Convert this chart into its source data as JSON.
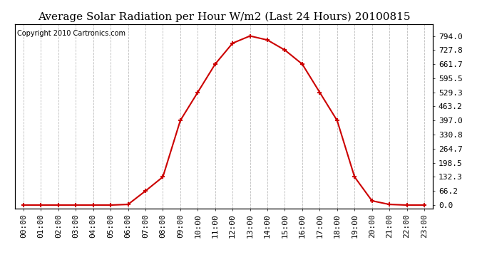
{
  "title": "Average Solar Radiation per Hour W/m2 (Last 24 Hours) 20100815",
  "copyright": "Copyright 2010 Cartronics.com",
  "hours": [
    "00:00",
    "01:00",
    "02:00",
    "03:00",
    "04:00",
    "05:00",
    "06:00",
    "07:00",
    "08:00",
    "09:00",
    "10:00",
    "11:00",
    "12:00",
    "13:00",
    "14:00",
    "15:00",
    "16:00",
    "17:00",
    "18:00",
    "19:00",
    "20:00",
    "21:00",
    "22:00",
    "23:00"
  ],
  "values": [
    0.0,
    0.0,
    0.0,
    0.0,
    0.0,
    0.0,
    3.0,
    66.2,
    132.3,
    397.0,
    529.3,
    661.7,
    760.0,
    794.0,
    775.0,
    727.8,
    661.7,
    529.3,
    397.0,
    132.3,
    20.0,
    3.0,
    0.0,
    0.0
  ],
  "line_color": "#cc0000",
  "marker_color": "#cc0000",
  "background_color": "#ffffff",
  "plot_bg_color": "#ffffff",
  "grid_color": "#bbbbbb",
  "title_fontsize": 11,
  "copyright_fontsize": 7,
  "tick_fontsize": 8,
  "ylabel_right_ticks": [
    0.0,
    66.2,
    132.3,
    198.5,
    264.7,
    330.8,
    397.0,
    463.2,
    529.3,
    595.5,
    661.7,
    727.8,
    794.0
  ],
  "ylim": [
    -15,
    850
  ]
}
